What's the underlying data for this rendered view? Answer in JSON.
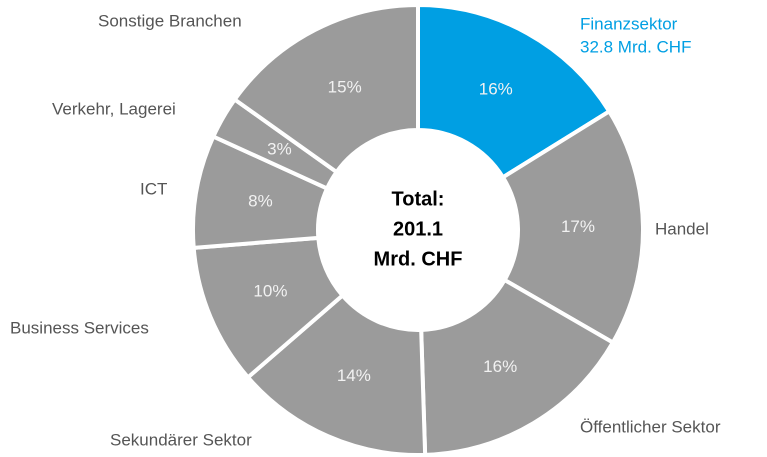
{
  "chart_data": {
    "type": "donut",
    "categories": [
      "Finanzsektor",
      "Handel",
      "Öffentlicher Sektor",
      "Sekundärer Sektor",
      "Business Services",
      "ICT",
      "Verkehr, Lagerei",
      "Sonstige Branchen"
    ],
    "values": [
      16,
      17,
      16,
      14,
      10,
      8,
      3,
      15
    ],
    "value_labels": [
      "16%",
      "17%",
      "16%",
      "14%",
      "10%",
      "8%",
      "3%",
      "15%"
    ],
    "colors": [
      "#009fe3",
      "#9b9b9b",
      "#9b9b9b",
      "#9b9b9b",
      "#9b9b9b",
      "#9b9b9b",
      "#9b9b9b",
      "#9b9b9b"
    ],
    "highlight_annotation": "32.8 Mrd. CHF",
    "center_text": [
      "Total:",
      "201.1",
      "Mrd. CHF"
    ]
  }
}
